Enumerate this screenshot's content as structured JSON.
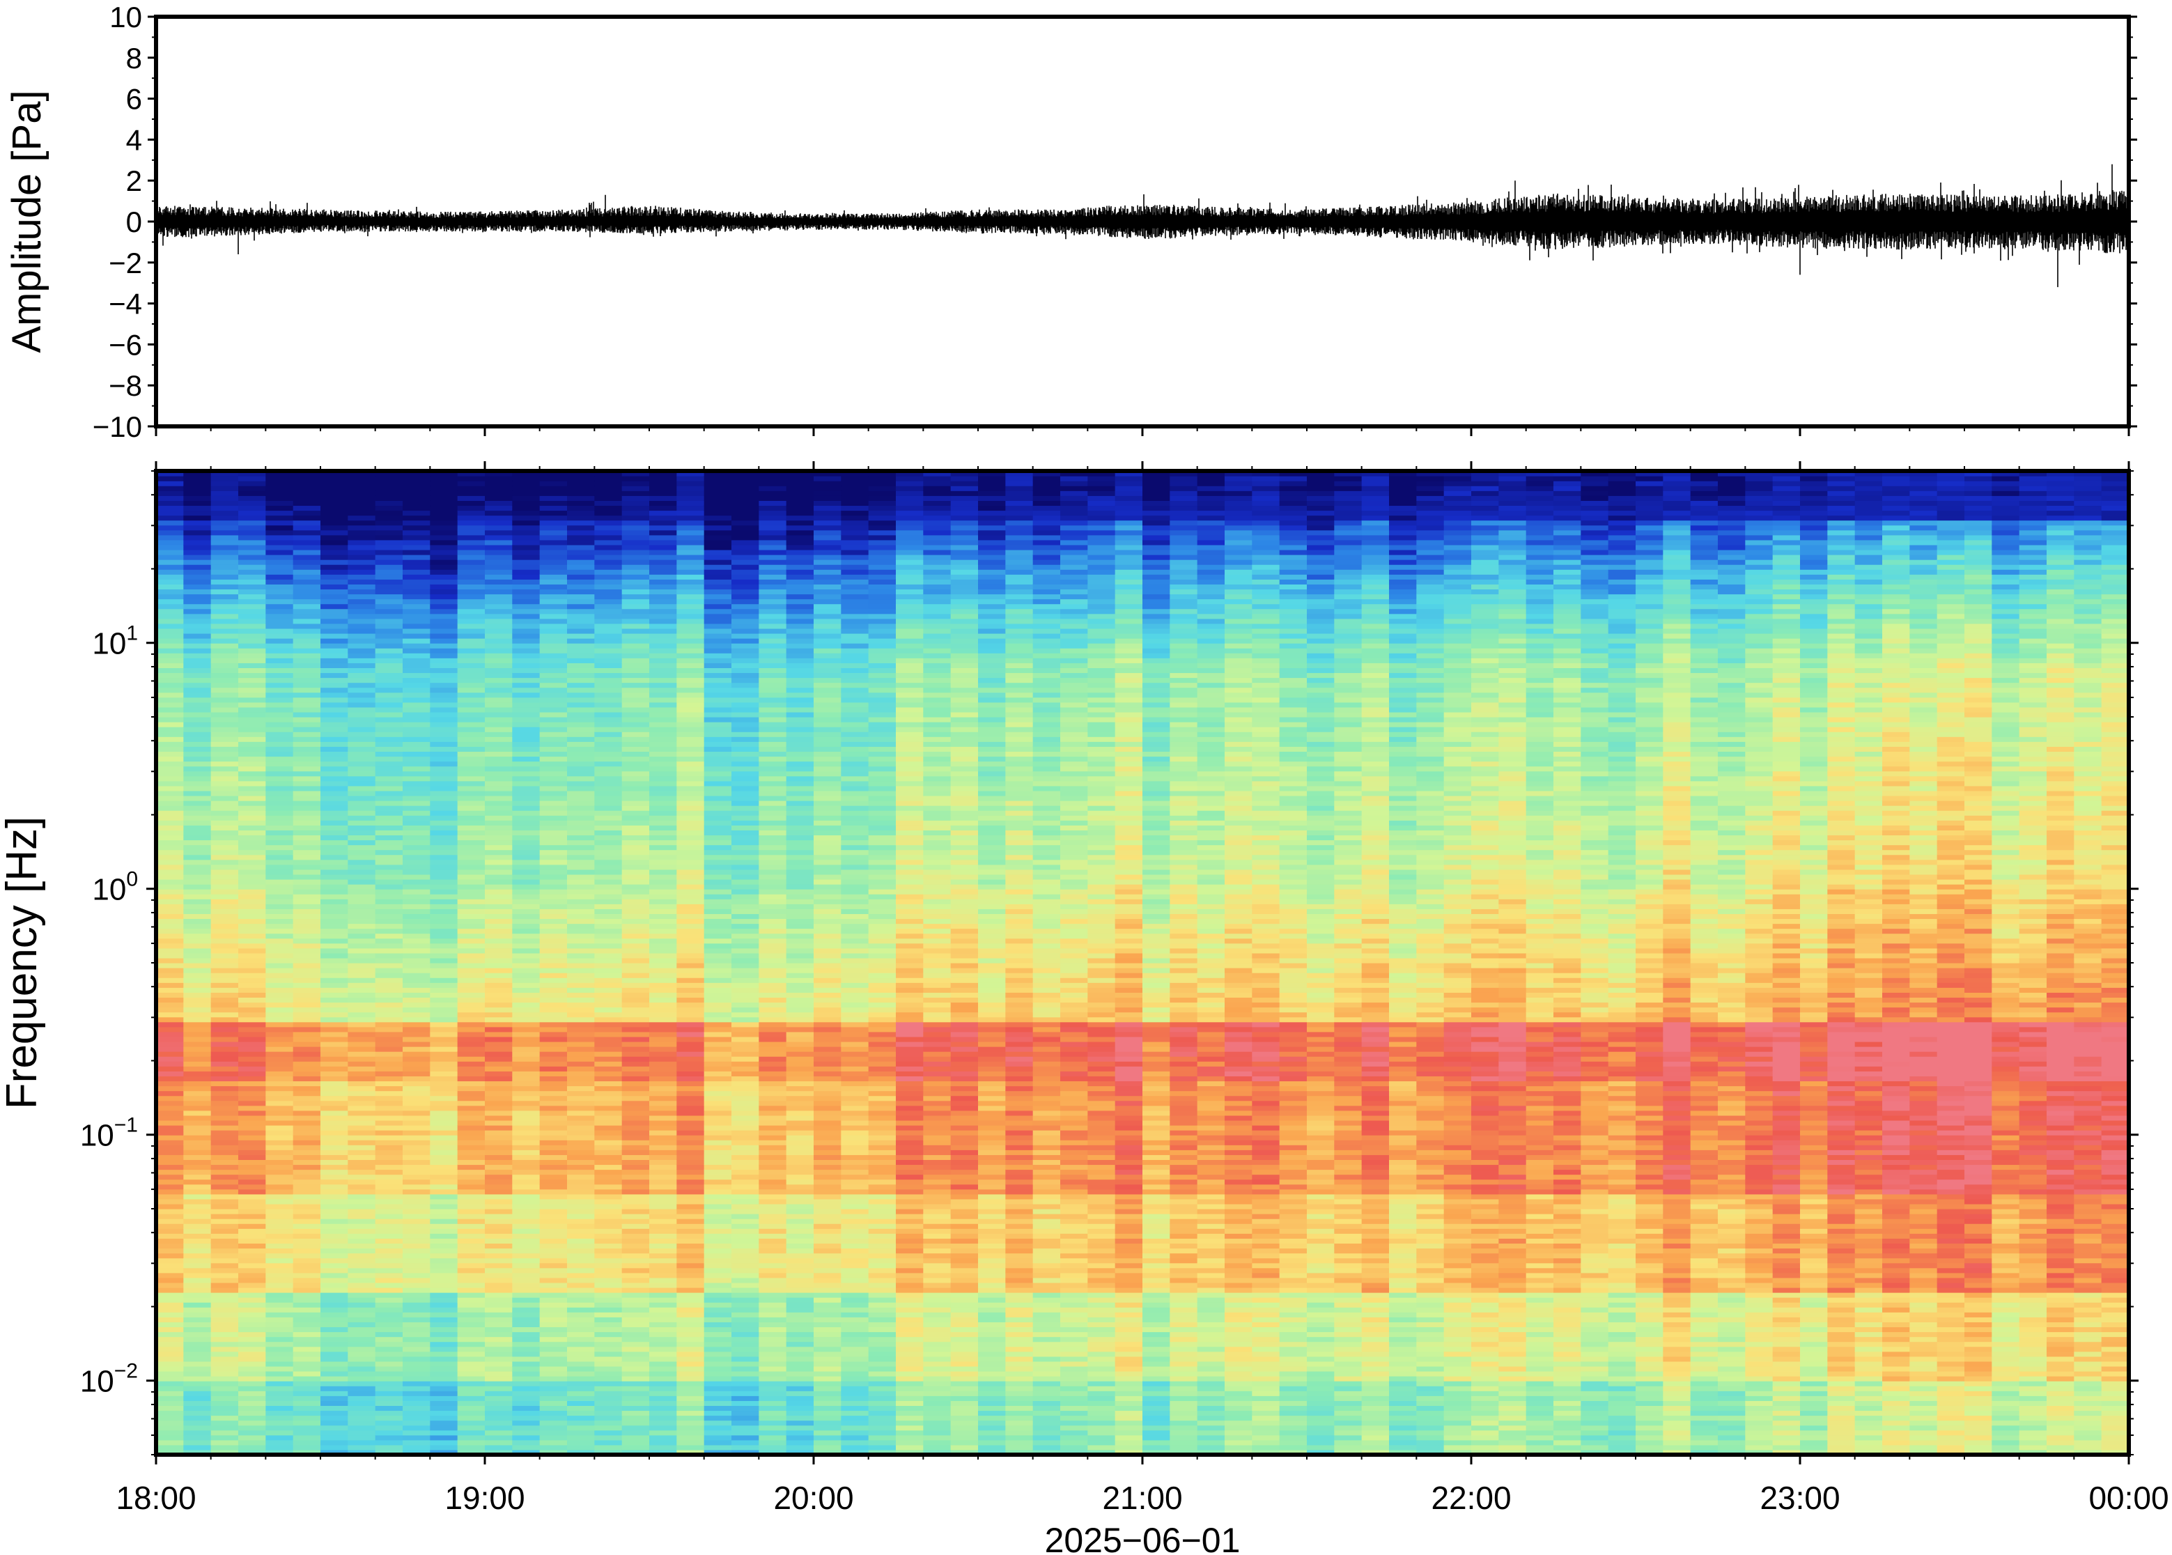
{
  "figure": {
    "date_label": "2025−06−01"
  },
  "chart_data": [
    {
      "type": "line",
      "panel": "waveform",
      "title": "",
      "xlabel": "",
      "ylabel": "Amplitude [Pa]",
      "ylim": [
        -10,
        10
      ],
      "yticks": [
        10,
        8,
        6,
        4,
        2,
        0,
        -2,
        -4,
        -6,
        -8,
        -10
      ],
      "ytick_labels": [
        "10",
        "8",
        "6",
        "4",
        "2",
        "0",
        "−2",
        "−4",
        "−6",
        "−8",
        "−10"
      ],
      "xlim": [
        "18:00",
        "00:00"
      ],
      "x": [
        "18:00",
        "18:15",
        "18:30",
        "18:45",
        "19:00",
        "19:15",
        "19:30",
        "19:45",
        "20:00",
        "20:15",
        "20:30",
        "20:45",
        "21:00",
        "21:15",
        "21:30",
        "21:45",
        "22:00",
        "22:15",
        "22:30",
        "22:45",
        "23:00",
        "23:15",
        "23:30",
        "23:45",
        "00:00"
      ],
      "envelope_max": [
        0.8,
        0.7,
        0.6,
        0.5,
        0.5,
        0.6,
        0.8,
        0.5,
        0.4,
        0.4,
        0.6,
        0.6,
        0.9,
        0.7,
        0.6,
        0.8,
        1.0,
        1.4,
        1.2,
        1.1,
        1.2,
        1.4,
        1.3,
        1.3,
        1.6
      ],
      "envelope_min": [
        -0.8,
        -0.7,
        -0.5,
        -0.5,
        -0.5,
        -0.5,
        -0.6,
        -0.5,
        -0.4,
        -0.4,
        -0.6,
        -0.6,
        -0.9,
        -0.7,
        -0.6,
        -0.8,
        -1.0,
        -1.4,
        -1.2,
        -1.1,
        -1.3,
        -1.4,
        -1.3,
        -1.4,
        -1.6
      ],
      "peaks": [
        {
          "time": "18:15",
          "value": -1.6
        },
        {
          "time": "19:22",
          "value": 1.3
        },
        {
          "time": "22:08",
          "value": 2.0
        },
        {
          "time": "23:00",
          "value": -2.6
        },
        {
          "time": "23:47",
          "value": -3.2
        },
        {
          "time": "23:57",
          "value": 2.8
        }
      ],
      "line_color": "#000000",
      "grid": false
    },
    {
      "type": "heatmap",
      "panel": "spectrogram",
      "title": "",
      "xlabel": "",
      "ylabel": "Frequency [Hz]",
      "yscale": "log",
      "ylim": [
        0.005,
        50
      ],
      "yticks": [
        {
          "base": "10",
          "exp": "−2",
          "value": 0.01
        },
        {
          "base": "10",
          "exp": "−1",
          "value": 0.1
        },
        {
          "base": "10",
          "exp": "0",
          "value": 1
        },
        {
          "base": "10",
          "exp": "1",
          "value": 10
        }
      ],
      "x_ticks": [
        "18:00",
        "19:00",
        "20:00",
        "21:00",
        "22:00",
        "23:00",
        "00:00"
      ],
      "xlim": [
        "18:00",
        "00:00"
      ],
      "colormap": "rainbow (dark blue = low power, red = high power)",
      "microseism_band_hz": [
        0.1,
        0.2
      ],
      "grid": false
    }
  ]
}
